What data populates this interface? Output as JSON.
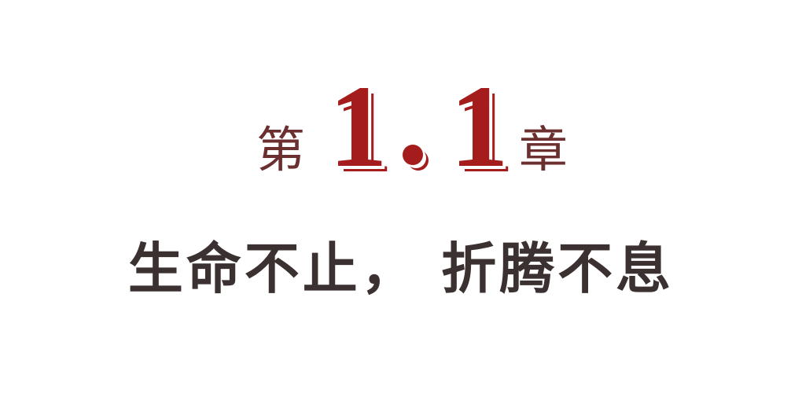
{
  "chapter": {
    "prefix": "第",
    "number_left": "1",
    "number_right": "1",
    "suffix": "章"
  },
  "subtitle": "生命不止， 折腾不息",
  "colors": {
    "accent_red": "#a51c1c",
    "chapter_text": "#6b2f2f",
    "subtitle_text": "#3b3131",
    "background": "#ffffff"
  }
}
